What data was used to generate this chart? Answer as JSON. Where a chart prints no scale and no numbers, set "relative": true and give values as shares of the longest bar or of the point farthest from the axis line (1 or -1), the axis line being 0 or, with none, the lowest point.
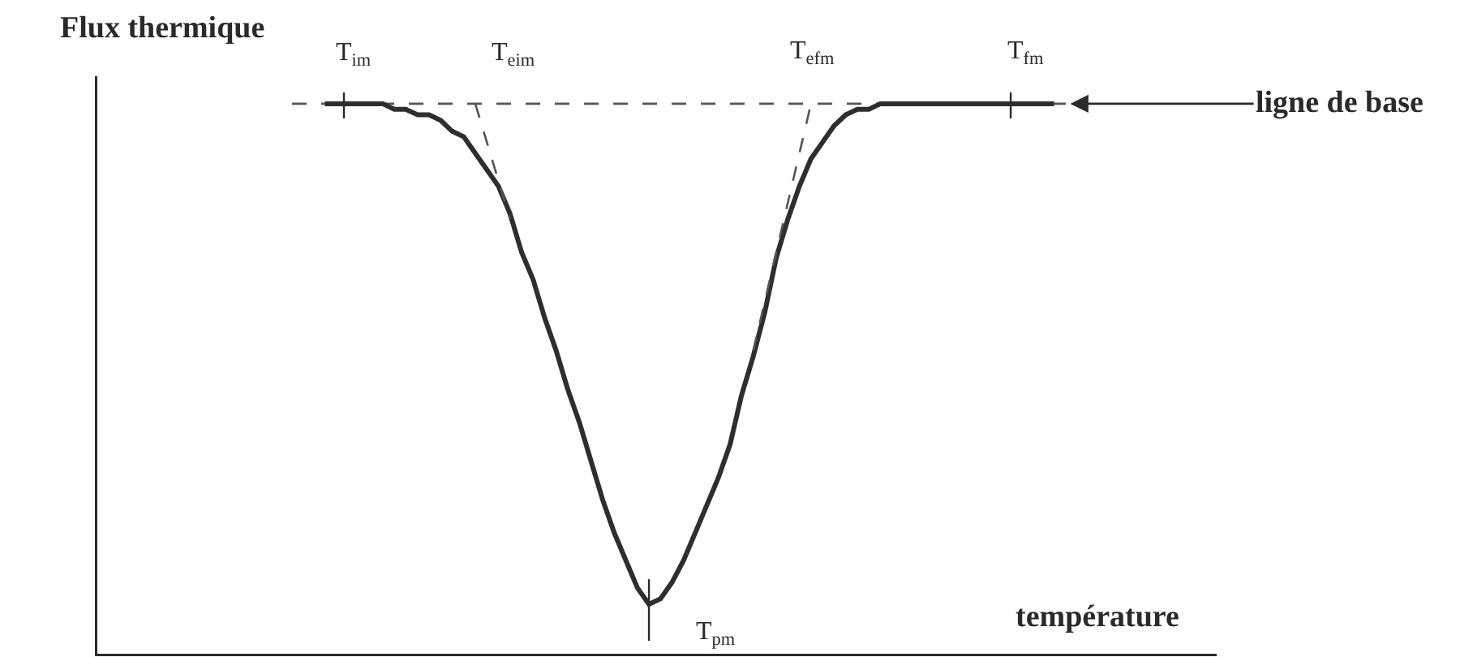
{
  "chart_data": {
    "type": "line",
    "relative": true,
    "xlabel": "température",
    "ylabel": "Flux thermique",
    "categories": [
      null,
      null,
      null,
      null,
      null,
      null,
      null,
      null,
      null,
      null,
      null,
      null,
      null,
      null,
      null,
      null,
      null,
      null,
      null,
      null,
      null,
      null,
      null,
      null,
      null,
      null,
      null,
      null,
      null,
      null,
      null,
      null,
      null,
      null,
      null,
      null,
      null,
      null,
      null,
      null,
      null,
      null,
      null,
      null,
      null,
      null,
      null,
      null,
      null,
      null,
      null,
      null,
      null,
      null,
      null,
      null,
      null,
      null,
      null,
      null,
      null,
      null,
      null,
      null
    ],
    "series": [
      {
        "color": "#2e2e2e",
        "line_style": "solid",
        "values": [
          1.0,
          1.0,
          1.0,
          1.0,
          1.0,
          1.0,
          0.99,
          0.99,
          0.98,
          0.98,
          0.97,
          0.95,
          0.94,
          0.91,
          0.88,
          0.85,
          0.8,
          0.73,
          0.68,
          0.61,
          0.55,
          0.48,
          0.42,
          0.35,
          0.28,
          0.22,
          0.17,
          0.12,
          0.09,
          0.1,
          0.13,
          0.17,
          0.22,
          0.27,
          0.32,
          0.38,
          0.47,
          0.54,
          0.62,
          0.72,
          0.79,
          0.85,
          0.9,
          0.93,
          0.96,
          0.98,
          0.99,
          0.99,
          1.0,
          1.0,
          1.0,
          1.0,
          1.0,
          1.0,
          1.0,
          1.0,
          1.0,
          1.0,
          1.0,
          1.0,
          1.0,
          1.0,
          1.0,
          1.0
        ]
      },
      {
        "color": "#555555",
        "line_style": "dashed",
        "values": [
          null,
          null,
          null,
          null,
          null,
          null,
          null,
          null,
          null,
          null,
          null,
          null,
          null,
          1.0,
          0.93,
          0.86,
          0.79,
          null,
          null,
          null,
          null,
          null,
          null,
          null,
          null,
          null,
          null,
          null,
          null,
          null,
          null,
          null,
          null,
          null,
          null,
          null,
          null,
          null,
          null,
          null,
          null,
          null,
          null,
          null,
          null,
          null,
          null,
          null,
          null,
          null,
          null,
          null,
          null,
          null,
          null,
          null,
          null,
          null,
          null,
          null,
          null,
          null,
          null,
          null
        ]
      },
      {
        "color": "#555555",
        "line_style": "dashed",
        "values": [
          null,
          null,
          null,
          null,
          null,
          null,
          null,
          null,
          null,
          null,
          null,
          null,
          null,
          null,
          null,
          null,
          null,
          null,
          null,
          null,
          null,
          null,
          null,
          null,
          null,
          null,
          null,
          null,
          null,
          null,
          null,
          null,
          null,
          null,
          null,
          null,
          null,
          0.55,
          0.64,
          0.73,
          0.82,
          0.91,
          1.0,
          null,
          null,
          null,
          null,
          null,
          null,
          null,
          null,
          null,
          null,
          null,
          null,
          null,
          null,
          null,
          null,
          null,
          null,
          null,
          null,
          null
        ]
      }
    ],
    "ref_lines": [
      {
        "axis": "y",
        "value": 1,
        "label": "ligne de base",
        "line_style": "dashed",
        "color": "#555555"
      }
    ],
    "annotations": [
      "T$_{im}$",
      "T$_{eim}$",
      "T$_{efm}$",
      "T$_{fm}$",
      "T$_{pm}$"
    ]
  }
}
